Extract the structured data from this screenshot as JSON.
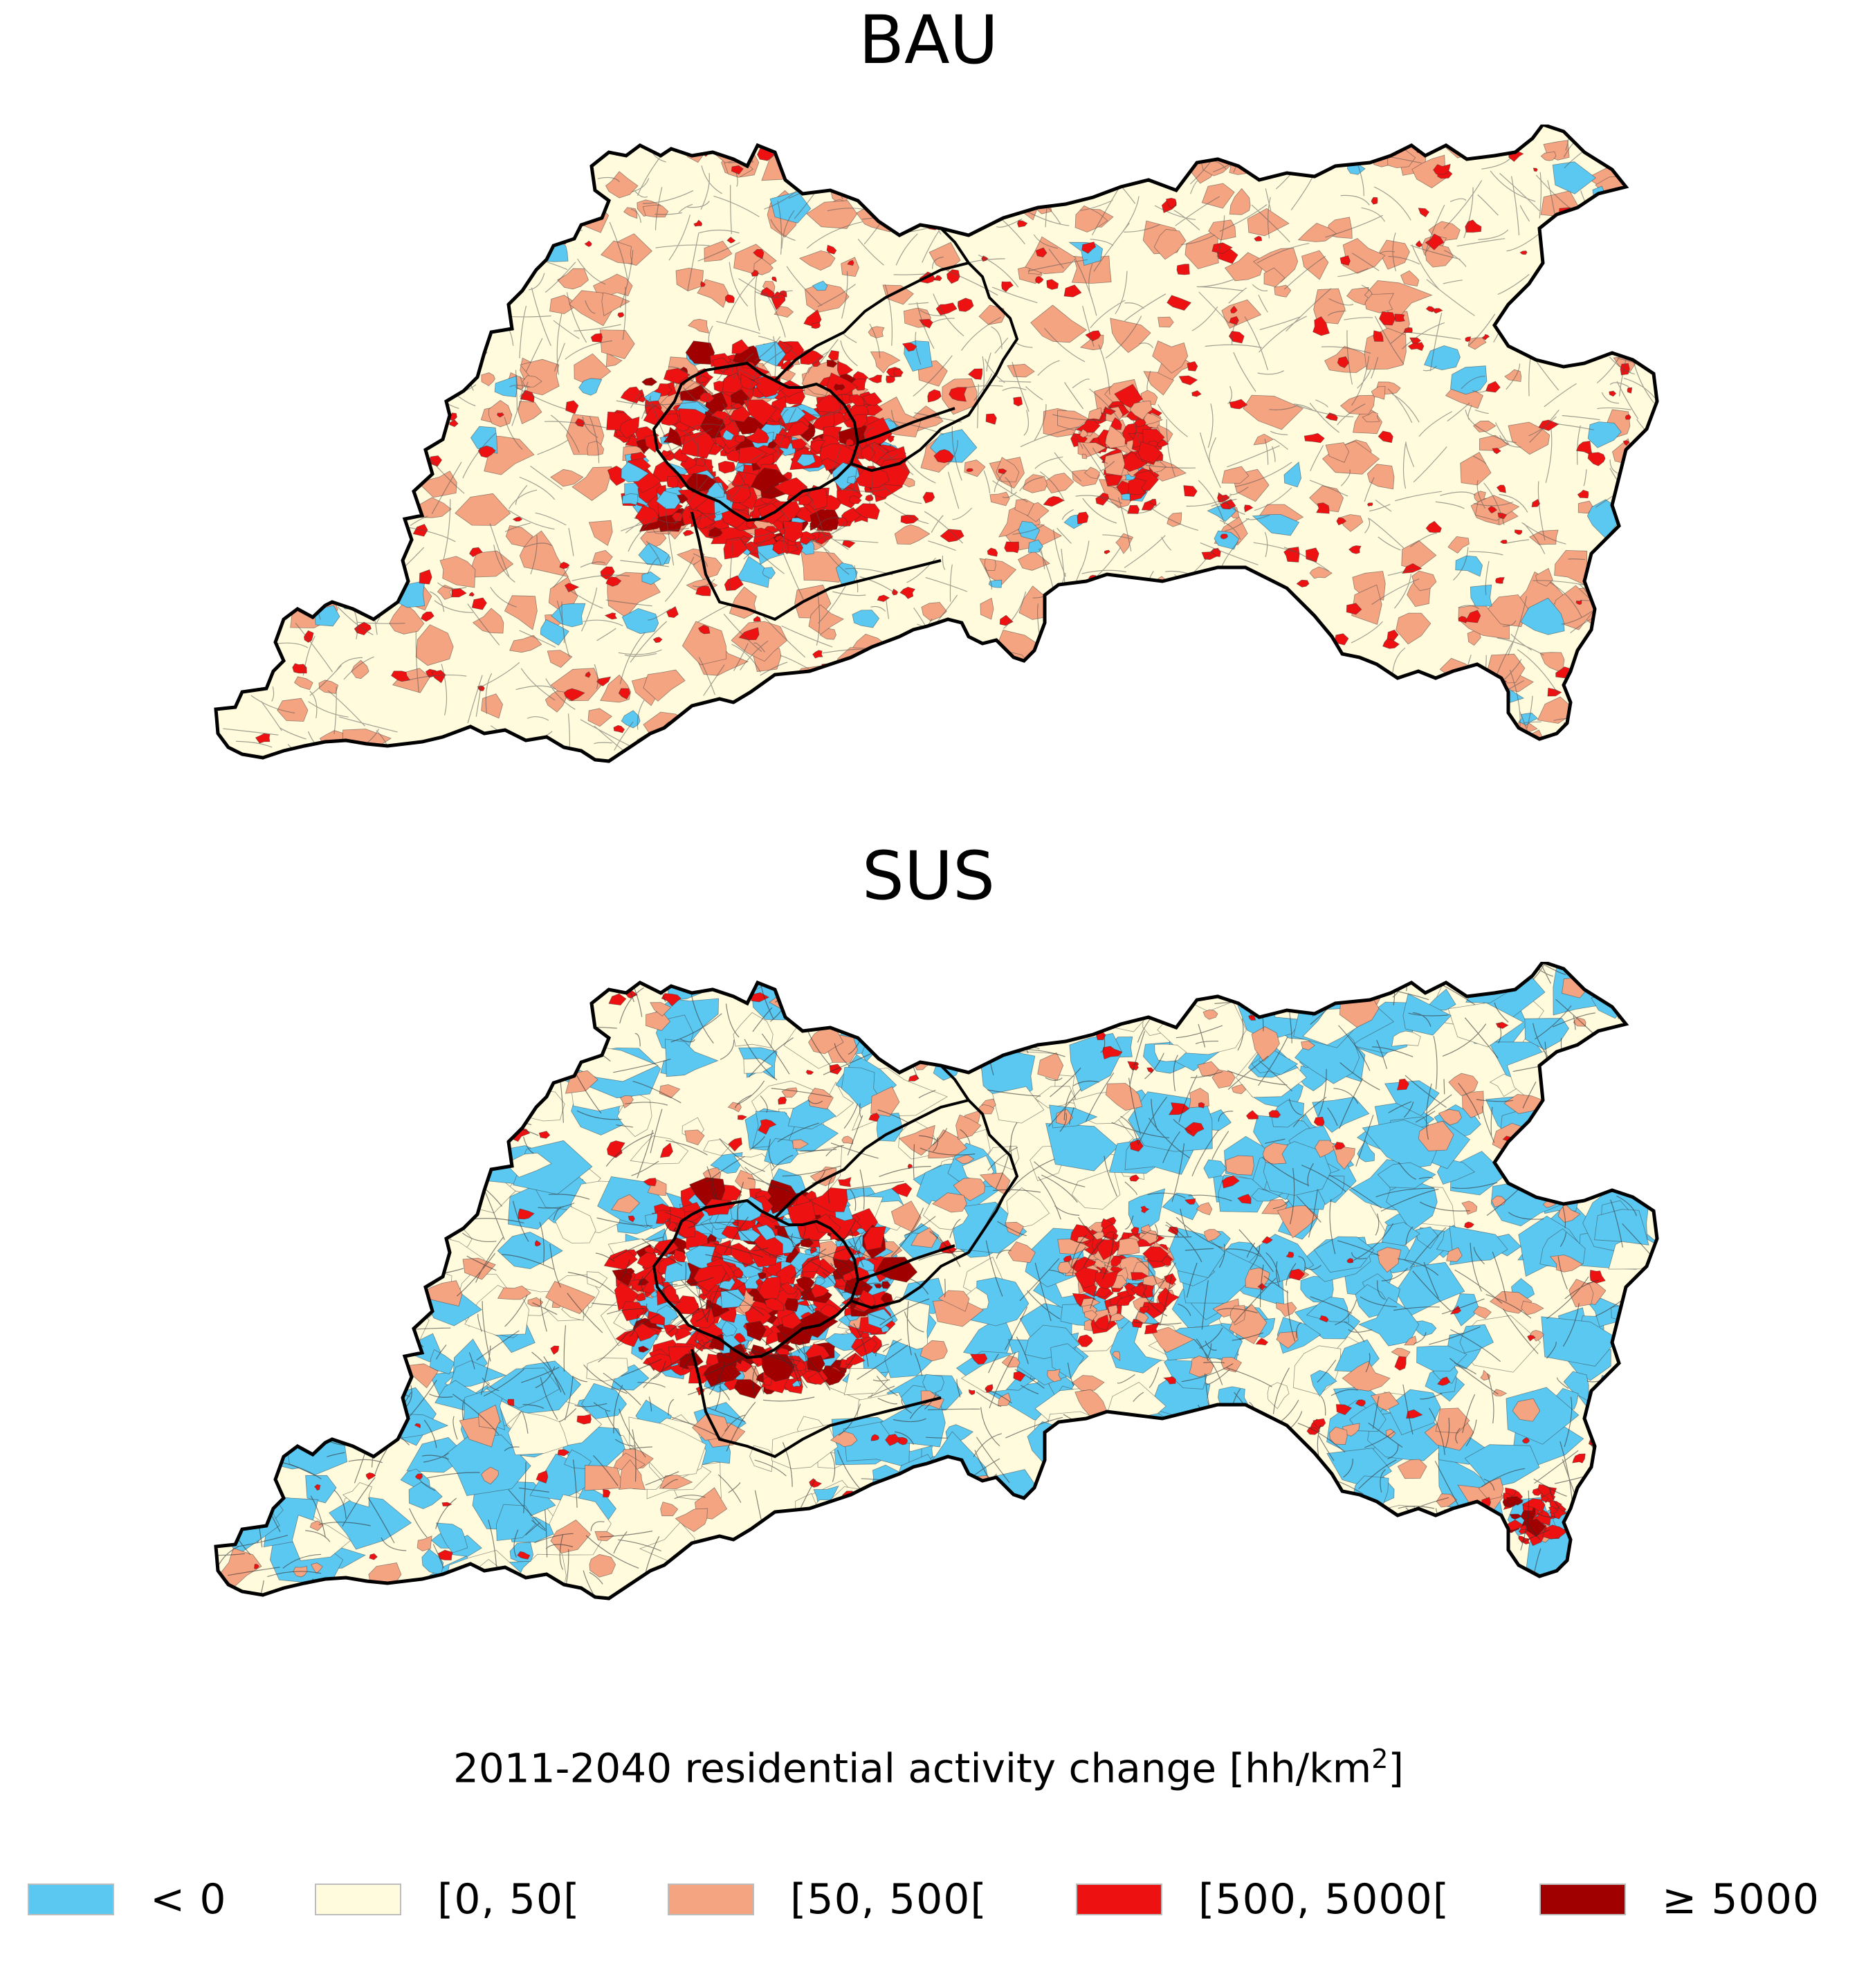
{
  "maps": [
    {
      "id": "bau",
      "title": "BAU"
    },
    {
      "id": "sus",
      "title": "SUS"
    }
  ],
  "legend": {
    "title_text": "2011-2040 residential activity change [hh/km",
    "title_sup": "2",
    "title_end": "]",
    "classes": [
      {
        "label": "< 0",
        "color": "#5bc8f2"
      },
      {
        "label": "[0, 50[",
        "color": "#fffbdc"
      },
      {
        "label": "[50, 500[",
        "color": "#f5a482"
      },
      {
        "label": "[500, 5000[",
        "color": "#ee1111"
      },
      {
        "label": "≥ 5000",
        "color": "#a00000"
      }
    ]
  },
  "colors": {
    "boundary": "#000000",
    "region_outline": "#1a1a1a"
  }
}
